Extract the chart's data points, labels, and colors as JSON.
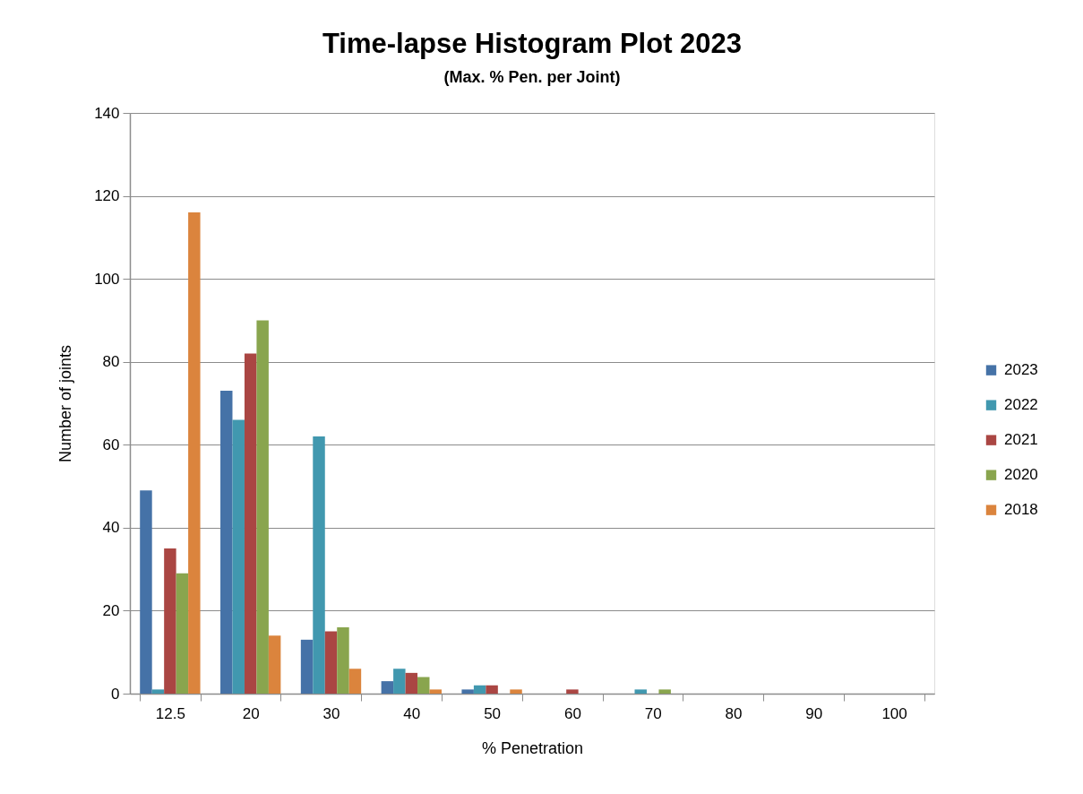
{
  "chart_data": {
    "type": "bar",
    "title": "Time-lapse Histogram Plot 2023",
    "subtitle": "(Max. % Pen. per Joint)",
    "xlabel": "% Penetration",
    "ylabel": "Number of joints",
    "categories": [
      "12.5",
      "20",
      "30",
      "40",
      "50",
      "60",
      "70",
      "80",
      "90",
      "100"
    ],
    "series": [
      {
        "name": "2023",
        "color": "#4572a7",
        "values": [
          49,
          73,
          13,
          3,
          1,
          0,
          0,
          0,
          0,
          0
        ]
      },
      {
        "name": "2022",
        "color": "#4198af",
        "values": [
          1,
          66,
          62,
          6,
          2,
          0,
          1,
          0,
          0,
          0
        ]
      },
      {
        "name": "2021",
        "color": "#aa4643",
        "values": [
          35,
          82,
          15,
          5,
          2,
          1,
          0,
          0,
          0,
          0
        ]
      },
      {
        "name": "2020",
        "color": "#89a54e",
        "values": [
          29,
          90,
          16,
          4,
          0,
          0,
          1,
          0,
          0,
          0
        ]
      },
      {
        "name": "2018",
        "color": "#db843d",
        "values": [
          116,
          14,
          6,
          1,
          1,
          0,
          0,
          0,
          0,
          0
        ]
      }
    ],
    "ylim": [
      0,
      140
    ],
    "yticks": [
      0,
      20,
      40,
      60,
      80,
      100,
      120,
      140
    ],
    "grid": "y",
    "legend": "right"
  }
}
